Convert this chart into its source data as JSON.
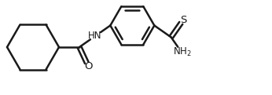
{
  "bg_color": "#ffffff",
  "line_color": "#1a1a1a",
  "line_width": 1.8,
  "font_size_labels": 8.5,
  "fig_width": 3.46,
  "fig_height": 1.21,
  "dpi": 100,
  "xlim": [
    0,
    346
  ],
  "ylim": [
    0,
    121
  ]
}
